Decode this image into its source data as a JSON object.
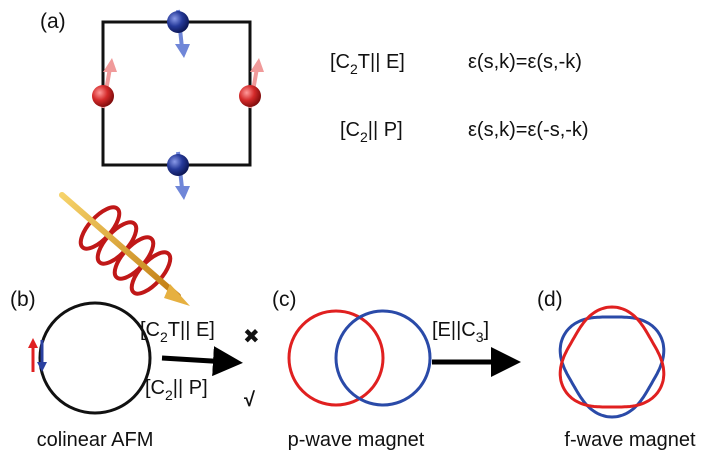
{
  "panel_a": {
    "label": "(a)",
    "rows": [
      {
        "symmetry": {
          "pre": "[C",
          "sub": "2",
          "post": "T|| E]"
        },
        "relation": "ε(s,k)=ε(s,-k)"
      },
      {
        "symmetry": {
          "pre": "[C",
          "sub": "2",
          "post": "|| P]"
        },
        "relation": "ε(s,k)=ε(-s,-k)"
      }
    ]
  },
  "panel_b": {
    "label": "(b)",
    "caption": "colinear AFM",
    "top": {
      "pre": "[C",
      "sub": "2",
      "post": "T|| E]"
    },
    "top_mark": "✖",
    "bottom": {
      "pre": "[C",
      "sub": "2",
      "post": "|| P]"
    },
    "bottom_mark": "√"
  },
  "panel_c": {
    "label": "(c)",
    "caption": "p-wave magnet",
    "transform": {
      "pre": "[E||C",
      "sub": "3",
      "post": "]"
    }
  },
  "panel_d": {
    "label": "(d)",
    "caption": "f-wave magnet"
  }
}
